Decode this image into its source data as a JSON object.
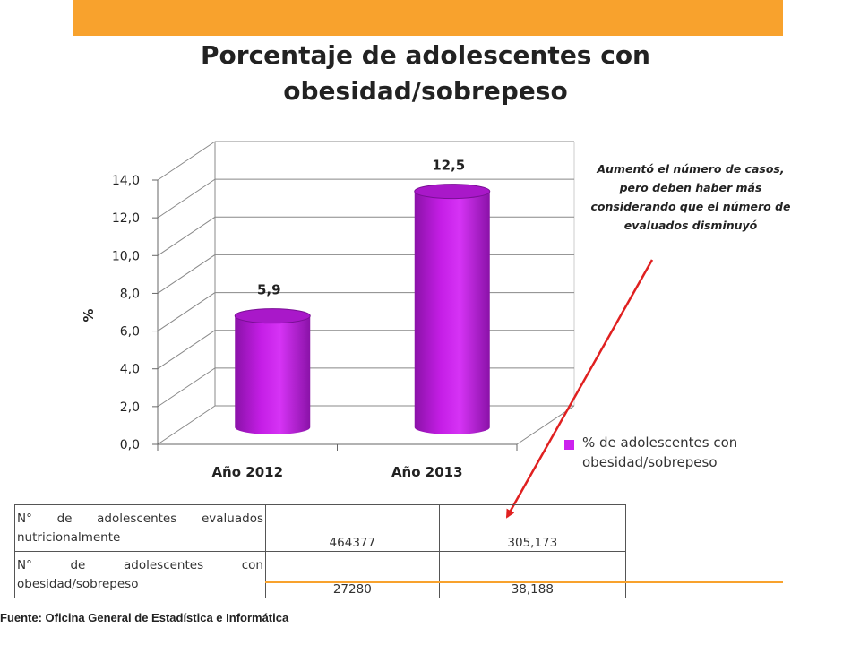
{
  "title": "Porcentaje de adolescentes con obesidad/sobrepeso",
  "annotation": "Aumentó el número de casos, pero deben haber más considerando que el número de evaluados disminuyó",
  "colors": {
    "accent_bar": "#f8a22d",
    "series": "#cc22ee",
    "arrow": "#e02020"
  },
  "chart_data": {
    "type": "bar",
    "categories": [
      "Año 2012",
      "Año 2013"
    ],
    "series": [
      {
        "name": "% de adolescentes con obesidad/sobrepeso",
        "values": [
          5.9,
          12.5
        ]
      }
    ],
    "data_labels": [
      "5,9",
      "12,5"
    ],
    "ylabel": "%",
    "ylim": [
      0,
      14
    ],
    "yticks": [
      0,
      2,
      4,
      6,
      8,
      10,
      12,
      14
    ],
    "ytick_labels": [
      "0,0",
      "2,0",
      "4,0",
      "6,0",
      "8,0",
      "10,0",
      "12,0",
      "14,0"
    ],
    "grid": true,
    "legend": "right",
    "style": "3d-cylinder"
  },
  "table": {
    "rows": [
      {
        "label": "N° de adolescentes evaluados nutricionalmente",
        "values": [
          "464377",
          "305,173"
        ]
      },
      {
        "label": "N° de adolescentes con obesidad/sobrepeso",
        "values": [
          "27280",
          "38,188"
        ]
      }
    ]
  },
  "source": "Fuente: Oficina General de Estadística e Informática"
}
